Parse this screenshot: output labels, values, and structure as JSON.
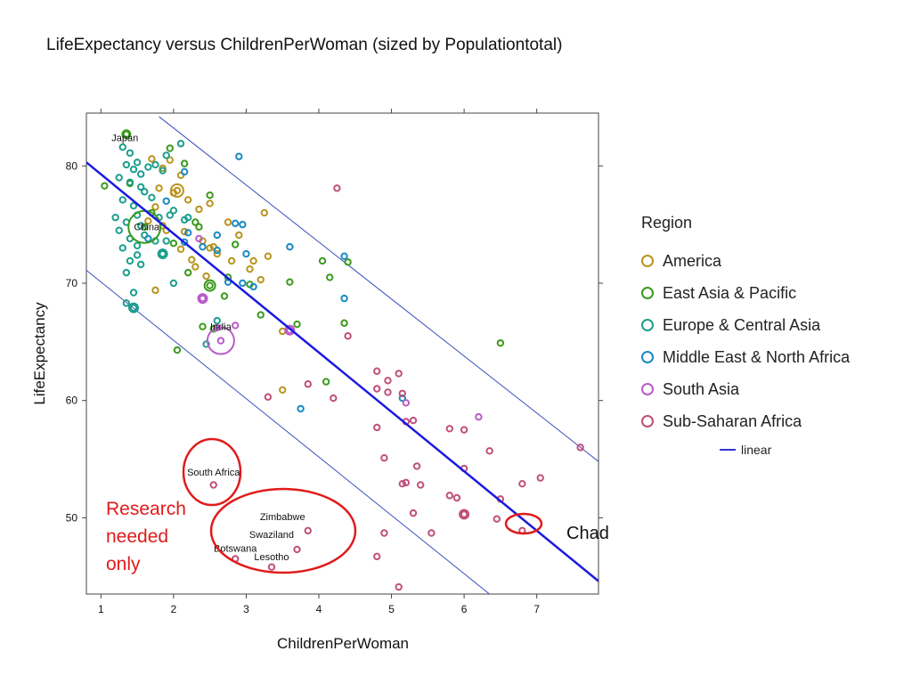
{
  "chart_data": {
    "type": "scatter",
    "title": "LifeExpectancy versus ChildrenPerWoman (sized by Populationtotal)",
    "xlabel": "ChildrenPerWoman",
    "ylabel": "LifeExpectancy",
    "xlim": [
      0.8,
      7.85
    ],
    "ylim": [
      43.5,
      84.5
    ],
    "xticks": [
      1,
      2,
      3,
      4,
      5,
      6,
      7
    ],
    "yticks": [
      50,
      60,
      70,
      80
    ],
    "legend_title": "Region",
    "legend_position": "right",
    "series": [
      {
        "name": "America",
        "color": "#b8941e",
        "points": [
          [
            1.7,
            80.6
          ],
          [
            1.85,
            79.8
          ],
          [
            1.95,
            80.5
          ],
          [
            2.1,
            79.2
          ],
          [
            1.8,
            78.1
          ],
          [
            2.05,
            77.9
          ],
          [
            1.75,
            76.5
          ],
          [
            2.2,
            77.1
          ],
          [
            2.35,
            76.3
          ],
          [
            2.5,
            76.8
          ],
          [
            1.65,
            75.3
          ],
          [
            1.85,
            74.9
          ],
          [
            2.15,
            74.4
          ],
          [
            2.4,
            73.6
          ],
          [
            2.55,
            73.1
          ],
          [
            2.75,
            75.2
          ],
          [
            2.9,
            74.1
          ],
          [
            3.25,
            76.0
          ],
          [
            2.6,
            72.5
          ],
          [
            2.8,
            71.9
          ],
          [
            3.1,
            71.9
          ],
          [
            3.3,
            72.3
          ],
          [
            2.25,
            72.0
          ],
          [
            2.45,
            70.6
          ],
          [
            1.75,
            69.4
          ],
          [
            2.3,
            71.4
          ],
          [
            2.5,
            73.0
          ],
          [
            3.5,
            65.9
          ],
          [
            3.5,
            60.9
          ],
          [
            3.05,
            71.2
          ],
          [
            2.1,
            72.9
          ],
          [
            1.9,
            74.5
          ],
          [
            2.0,
            77.7
          ],
          [
            3.2,
            70.3
          ]
        ]
      },
      {
        "name": "East Asia & Pacific",
        "color": "#3b9a1c",
        "points": [
          [
            1.35,
            82.7
          ],
          [
            1.95,
            81.5
          ],
          [
            2.15,
            80.2
          ],
          [
            1.05,
            78.3
          ],
          [
            1.4,
            78.5
          ],
          [
            1.7,
            76.0
          ],
          [
            2.0,
            73.4
          ],
          [
            2.5,
            77.5
          ],
          [
            2.3,
            75.2
          ],
          [
            2.85,
            73.3
          ],
          [
            2.75,
            70.5
          ],
          [
            3.05,
            69.9
          ],
          [
            2.5,
            69.8
          ],
          [
            2.7,
            68.9
          ],
          [
            3.2,
            67.3
          ],
          [
            2.4,
            66.3
          ],
          [
            2.55,
            66.1
          ],
          [
            2.05,
            64.3
          ],
          [
            3.6,
            70.1
          ],
          [
            4.05,
            71.9
          ],
          [
            4.4,
            71.8
          ],
          [
            4.15,
            70.5
          ],
          [
            3.7,
            66.5
          ],
          [
            4.35,
            66.6
          ],
          [
            4.1,
            61.6
          ],
          [
            6.5,
            64.9
          ],
          [
            2.2,
            70.9
          ],
          [
            1.6,
            74.8
          ],
          [
            2.35,
            74.8
          ]
        ]
      },
      {
        "name": "Europe & Central Asia",
        "color": "#1d9e8e",
        "points": [
          [
            1.3,
            81.6
          ],
          [
            1.4,
            81.1
          ],
          [
            1.5,
            80.3
          ],
          [
            1.35,
            80.1
          ],
          [
            1.45,
            79.7
          ],
          [
            1.55,
            79.3
          ],
          [
            1.65,
            79.9
          ],
          [
            1.75,
            80.1
          ],
          [
            1.85,
            79.6
          ],
          [
            1.25,
            79.0
          ],
          [
            1.4,
            78.6
          ],
          [
            1.55,
            78.2
          ],
          [
            1.6,
            77.8
          ],
          [
            1.7,
            77.3
          ],
          [
            1.3,
            77.1
          ],
          [
            1.45,
            76.6
          ],
          [
            1.5,
            75.8
          ],
          [
            1.35,
            75.2
          ],
          [
            1.25,
            74.5
          ],
          [
            1.4,
            73.8
          ],
          [
            1.6,
            74.1
          ],
          [
            1.75,
            73.6
          ],
          [
            1.5,
            73.2
          ],
          [
            1.3,
            73.0
          ],
          [
            1.4,
            71.9
          ],
          [
            1.55,
            71.6
          ],
          [
            1.35,
            70.9
          ],
          [
            1.45,
            69.2
          ],
          [
            1.35,
            68.3
          ],
          [
            1.45,
            67.9
          ],
          [
            2.0,
            70.0
          ],
          [
            2.15,
            75.4
          ],
          [
            1.9,
            73.6
          ],
          [
            1.85,
            72.5
          ],
          [
            1.95,
            75.8
          ],
          [
            2.2,
            75.6
          ],
          [
            2.6,
            66.8
          ],
          [
            2.45,
            64.8
          ],
          [
            1.2,
            75.6
          ],
          [
            1.5,
            72.4
          ],
          [
            1.9,
            80.9
          ],
          [
            2.1,
            81.9
          ],
          [
            1.55,
            74.9
          ],
          [
            1.8,
            75.6
          ],
          [
            2.0,
            76.2
          ]
        ]
      },
      {
        "name": "Middle East & North Africa",
        "color": "#1a8ac2",
        "points": [
          [
            2.9,
            80.8
          ],
          [
            2.15,
            79.5
          ],
          [
            1.9,
            77.0
          ],
          [
            1.65,
            73.8
          ],
          [
            2.2,
            74.3
          ],
          [
            2.4,
            73.1
          ],
          [
            2.6,
            74.1
          ],
          [
            2.6,
            72.8
          ],
          [
            2.75,
            70.1
          ],
          [
            2.85,
            75.1
          ],
          [
            2.95,
            75.0
          ],
          [
            3.0,
            72.5
          ],
          [
            3.6,
            73.1
          ],
          [
            4.35,
            72.3
          ],
          [
            2.95,
            70.0
          ],
          [
            4.35,
            68.7
          ],
          [
            3.1,
            69.7
          ],
          [
            5.15,
            60.2
          ],
          [
            3.75,
            59.3
          ],
          [
            2.15,
            73.5
          ]
        ]
      },
      {
        "name": "South Asia",
        "color": "#b85cc8",
        "points": [
          [
            2.35,
            73.8
          ],
          [
            2.4,
            68.7
          ],
          [
            2.6,
            66.2
          ],
          [
            2.85,
            66.4
          ],
          [
            3.6,
            66.0
          ],
          [
            5.2,
            59.8
          ],
          [
            6.2,
            58.6
          ],
          [
            2.65,
            65.1
          ]
        ]
      },
      {
        "name": "Sub-Saharan Africa",
        "color": "#c0507a",
        "points": [
          [
            4.25,
            78.1
          ],
          [
            4.4,
            65.5
          ],
          [
            3.3,
            60.3
          ],
          [
            3.85,
            61.4
          ],
          [
            4.2,
            60.2
          ],
          [
            4.8,
            62.5
          ],
          [
            4.95,
            61.7
          ],
          [
            5.1,
            62.3
          ],
          [
            4.8,
            61.0
          ],
          [
            4.95,
            60.7
          ],
          [
            5.15,
            60.6
          ],
          [
            5.3,
            58.3
          ],
          [
            5.2,
            58.2
          ],
          [
            4.8,
            57.7
          ],
          [
            5.8,
            57.6
          ],
          [
            6.0,
            57.5
          ],
          [
            6.35,
            55.7
          ],
          [
            7.6,
            56.0
          ],
          [
            4.9,
            55.1
          ],
          [
            5.35,
            54.4
          ],
          [
            5.2,
            53.0
          ],
          [
            5.15,
            52.9
          ],
          [
            5.4,
            52.8
          ],
          [
            5.8,
            51.9
          ],
          [
            5.9,
            51.7
          ],
          [
            6.0,
            54.2
          ],
          [
            6.5,
            51.6
          ],
          [
            6.8,
            52.9
          ],
          [
            7.05,
            53.4
          ],
          [
            5.3,
            50.4
          ],
          [
            6.0,
            50.3
          ],
          [
            6.45,
            49.9
          ],
          [
            5.55,
            48.7
          ],
          [
            4.9,
            48.7
          ],
          [
            4.8,
            46.7
          ],
          [
            5.1,
            44.1
          ],
          [
            2.55,
            52.8
          ],
          [
            3.85,
            48.9
          ],
          [
            3.35,
            45.8
          ],
          [
            2.85,
            46.5
          ],
          [
            3.7,
            47.3
          ],
          [
            6.8,
            48.9
          ]
        ]
      }
    ],
    "fit_line": {
      "name": "linear",
      "color": "#1a1ae0",
      "x": [
        0.8,
        7.85
      ],
      "y": [
        80.3,
        44.6
      ]
    },
    "prediction_band": {
      "color": "#3a4fc0",
      "upper": {
        "x": [
          1.8,
          7.85
        ],
        "y": [
          84.2,
          54.8
        ]
      },
      "lower": {
        "x": [
          0.8,
          6.55
        ],
        "y": [
          71.1,
          42.5
        ]
      }
    },
    "labels": [
      {
        "text": "Japan",
        "x": 1.33,
        "y": 82.1
      },
      {
        "text": "China",
        "x": 1.63,
        "y": 74.5
      },
      {
        "text": "India",
        "x": 2.65,
        "y": 66.0
      },
      {
        "text": "South Africa",
        "x": 2.55,
        "y": 53.6
      },
      {
        "text": "Zimbabwe",
        "x": 3.5,
        "y": 49.8
      },
      {
        "text": "Swaziland",
        "x": 3.35,
        "y": 48.3
      },
      {
        "text": "Botswana",
        "x": 2.85,
        "y": 47.1
      },
      {
        "text": "Lesotho",
        "x": 3.35,
        "y": 46.4
      }
    ]
  },
  "annotations": {
    "research_note": "Research\nneeded\nonly",
    "chad_label": "Chad",
    "color": "#e01b1b"
  },
  "legend": {
    "title": "Region",
    "items": [
      {
        "label": "America",
        "color": "#b8941e"
      },
      {
        "label": "East Asia & Pacific",
        "color": "#3b9a1c"
      },
      {
        "label": "Europe & Central Asia",
        "color": "#1d9e8e"
      },
      {
        "label": "Middle East & North Africa",
        "color": "#1a8ac2"
      },
      {
        "label": "South Asia",
        "color": "#b85cc8"
      },
      {
        "label": "Sub-Saharan Africa",
        "color": "#c0507a"
      }
    ],
    "line_label": "linear",
    "line_color": "#3333cc"
  }
}
